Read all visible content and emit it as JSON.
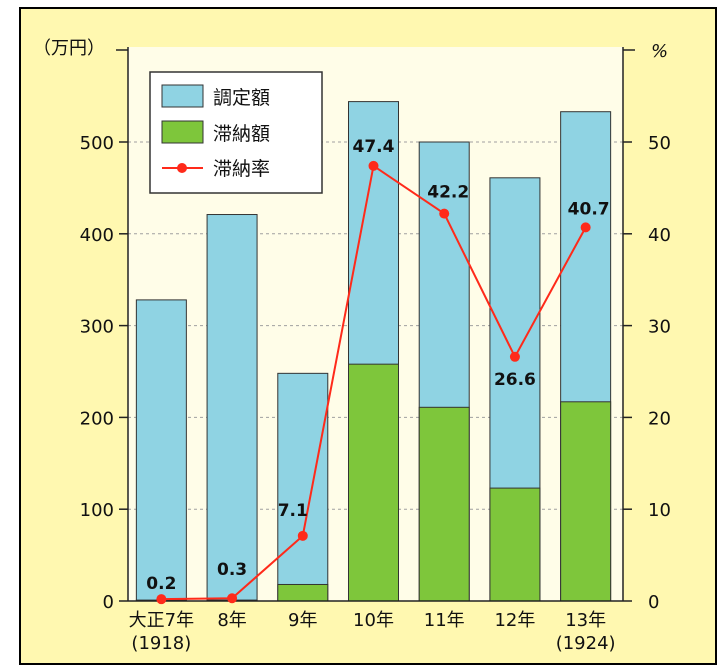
{
  "chart_data": {
    "type": "bar",
    "categories": [
      "大正7年",
      "8年",
      "9年",
      "10年",
      "11年",
      "12年",
      "13年"
    ],
    "category_sublabels": [
      "(1918)",
      "",
      "",
      "",
      "",
      "",
      "(1924)"
    ],
    "left_unit": "（万円）",
    "right_unit": "%",
    "ylim_left": [
      0,
      500
    ],
    "ylim_right": [
      0,
      50
    ],
    "yticks_left": [
      0,
      100,
      200,
      300,
      400,
      500
    ],
    "yticks_right": [
      0,
      10,
      20,
      30,
      40,
      50
    ],
    "grid": true,
    "legend_position": "top-left",
    "series": [
      {
        "name": "調定額",
        "type": "bar",
        "axis": "left",
        "color": "#8fd3e3",
        "values": [
          328,
          421,
          248,
          544,
          500,
          461,
          533
        ]
      },
      {
        "name": "滞納額",
        "type": "bar",
        "axis": "left",
        "color": "#7ec63b",
        "values": [
          1,
          1,
          18,
          258,
          211,
          123,
          217
        ]
      },
      {
        "name": "滞納率",
        "type": "line",
        "axis": "right",
        "color": "#ff2a1a",
        "values": [
          0.2,
          0.3,
          7.1,
          47.4,
          42.2,
          26.6,
          40.7
        ],
        "labels": [
          "0.2",
          "0.3",
          "7.1",
          "47.4",
          "42.2",
          "26.6",
          "40.7"
        ]
      }
    ]
  }
}
